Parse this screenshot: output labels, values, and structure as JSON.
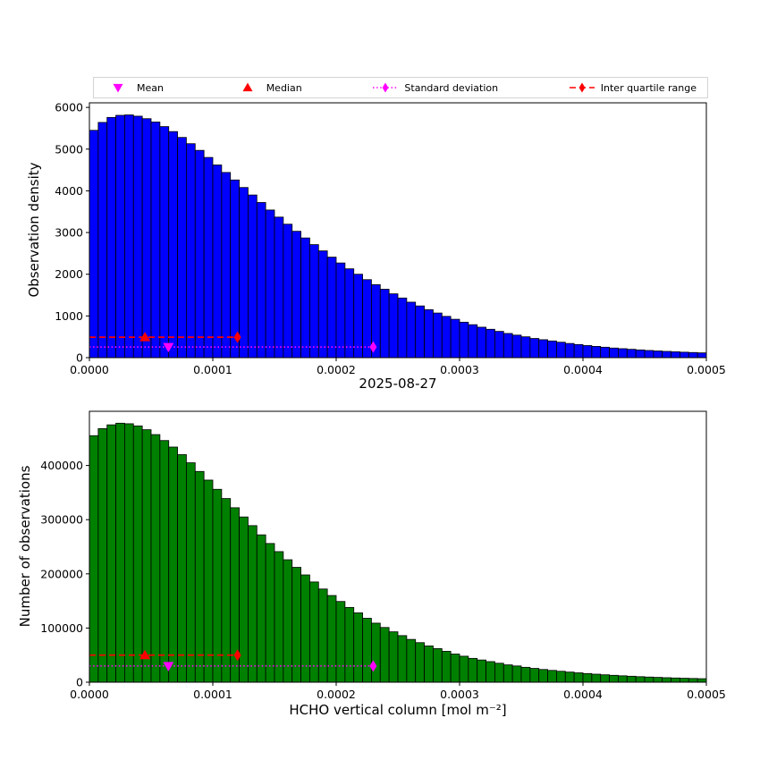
{
  "figure": {
    "background": "#ffffff"
  },
  "chart_data": [
    {
      "type": "bar",
      "title": "",
      "xlabel": "2025-08-27",
      "ylabel": "Observation density",
      "bar_color": "#0000ff",
      "bar_edge_color": "#000000",
      "xlim": [
        0,
        0.0005
      ],
      "ylim": [
        0,
        6110
      ],
      "grid": false,
      "x_start": 0,
      "bin_width": 7.142857e-06,
      "xticks": [
        {
          "value": 0,
          "label": "0.0000"
        },
        {
          "value": 0.0001,
          "label": "0.0001"
        },
        {
          "value": 0.0002,
          "label": "0.0002"
        },
        {
          "value": 0.0003,
          "label": "0.0003"
        },
        {
          "value": 0.0004,
          "label": "0.0004"
        },
        {
          "value": 0.0005,
          "label": "0.0005"
        }
      ],
      "yticks": [
        {
          "value": 0,
          "label": "0"
        },
        {
          "value": 1000,
          "label": "1000"
        },
        {
          "value": 2000,
          "label": "2000"
        },
        {
          "value": 3000,
          "label": "3000"
        },
        {
          "value": 4000,
          "label": "4000"
        },
        {
          "value": 5000,
          "label": "5000"
        },
        {
          "value": 6000,
          "label": "6000"
        }
      ],
      "values": [
        5450,
        5640,
        5760,
        5810,
        5820,
        5790,
        5730,
        5650,
        5540,
        5420,
        5280,
        5130,
        4970,
        4800,
        4620,
        4440,
        4260,
        4080,
        3900,
        3720,
        3540,
        3370,
        3200,
        3030,
        2870,
        2710,
        2560,
        2410,
        2270,
        2130,
        2000,
        1870,
        1750,
        1640,
        1530,
        1430,
        1330,
        1240,
        1150,
        1070,
        990,
        920,
        850,
        790,
        730,
        680,
        630,
        580,
        540,
        500,
        460,
        430,
        400,
        370,
        340,
        315,
        290,
        270,
        250,
        230,
        215,
        200,
        185,
        172,
        160,
        150,
        140,
        131,
        123,
        115
      ],
      "annotations": {
        "iqr_line": {
          "y": 490,
          "x_start": 0,
          "x_end": 0.00012,
          "color": "#ff0000",
          "style": "dashed"
        },
        "std_line": {
          "y": 255,
          "x_start": 0,
          "x_end": 0.00023,
          "color": "#ff00ff",
          "style": "dotted"
        },
        "median_marker": {
          "x": 4.5e-05,
          "y": 490,
          "color": "#ff0000",
          "marker": "triangle-up"
        },
        "mean_marker": {
          "x": 6.4e-05,
          "y": 255,
          "color": "#ff00ff",
          "marker": "triangle-down"
        }
      },
      "legend": [
        {
          "label": "Mean",
          "icon": "mean-triangle-down-icon",
          "marker": "triangle-down",
          "color": "#ff00ff",
          "line": "none"
        },
        {
          "label": "Median",
          "icon": "median-triangle-up-icon",
          "marker": "triangle-up",
          "color": "#ff0000",
          "line": "none"
        },
        {
          "label": "Standard deviation",
          "icon": "std-deviation-diamond-icon",
          "marker": "diamond",
          "color": "#ff00ff",
          "line": "dotted"
        },
        {
          "label": "Inter quartile range",
          "icon": "iqr-diamond-icon",
          "marker": "diamond",
          "color": "#ff0000",
          "line": "dashed"
        }
      ],
      "legend_position": "top"
    },
    {
      "type": "bar",
      "title": "",
      "xlabel": "HCHO vertical column [mol m⁻²]",
      "ylabel": "Number of observations",
      "bar_color": "#008000",
      "bar_edge_color": "#000000",
      "xlim": [
        0,
        0.0005
      ],
      "ylim": [
        0,
        500000
      ],
      "grid": false,
      "x_start": 0,
      "bin_width": 7.142857e-06,
      "xticks": [
        {
          "value": 0,
          "label": "0.0000"
        },
        {
          "value": 0.0001,
          "label": "0.0001"
        },
        {
          "value": 0.0002,
          "label": "0.0002"
        },
        {
          "value": 0.0003,
          "label": "0.0003"
        },
        {
          "value": 0.0004,
          "label": "0.0004"
        },
        {
          "value": 0.0005,
          "label": "0.0005"
        }
      ],
      "yticks": [
        {
          "value": 0,
          "label": "0"
        },
        {
          "value": 100000,
          "label": "100000"
        },
        {
          "value": 200000,
          "label": "200000"
        },
        {
          "value": 300000,
          "label": "300000"
        },
        {
          "value": 400000,
          "label": "400000"
        }
      ],
      "values": [
        455000,
        468000,
        475000,
        478000,
        477000,
        473000,
        466000,
        457000,
        446000,
        434000,
        420000,
        405000,
        389000,
        373000,
        356000,
        339000,
        322000,
        305000,
        289000,
        272000,
        256000,
        241000,
        226000,
        212000,
        198000,
        185000,
        172000,
        160000,
        149000,
        138000,
        128000,
        118000,
        109000,
        101000,
        93000,
        86000,
        79000,
        73000,
        67000,
        62000,
        57000,
        52000,
        48000,
        44000,
        41000,
        38000,
        35000,
        32000,
        30000,
        27500,
        25500,
        23500,
        21800,
        20200,
        18700,
        17300,
        16000,
        14800,
        13700,
        12700,
        11800,
        11000,
        10200,
        9500,
        8900,
        8300,
        7800,
        7300,
        6900,
        6500
      ],
      "annotations": {
        "iqr_line": {
          "y": 50000,
          "x_start": 0,
          "x_end": 0.00012,
          "color": "#ff0000",
          "style": "dashed"
        },
        "std_line": {
          "y": 30000,
          "x_start": 0,
          "x_end": 0.00023,
          "color": "#ff00ff",
          "style": "dotted"
        },
        "median_marker": {
          "x": 4.5e-05,
          "y": 50000,
          "color": "#ff0000",
          "marker": "triangle-up"
        },
        "mean_marker": {
          "x": 6.4e-05,
          "y": 30000,
          "color": "#ff00ff",
          "marker": "triangle-down"
        }
      }
    }
  ]
}
